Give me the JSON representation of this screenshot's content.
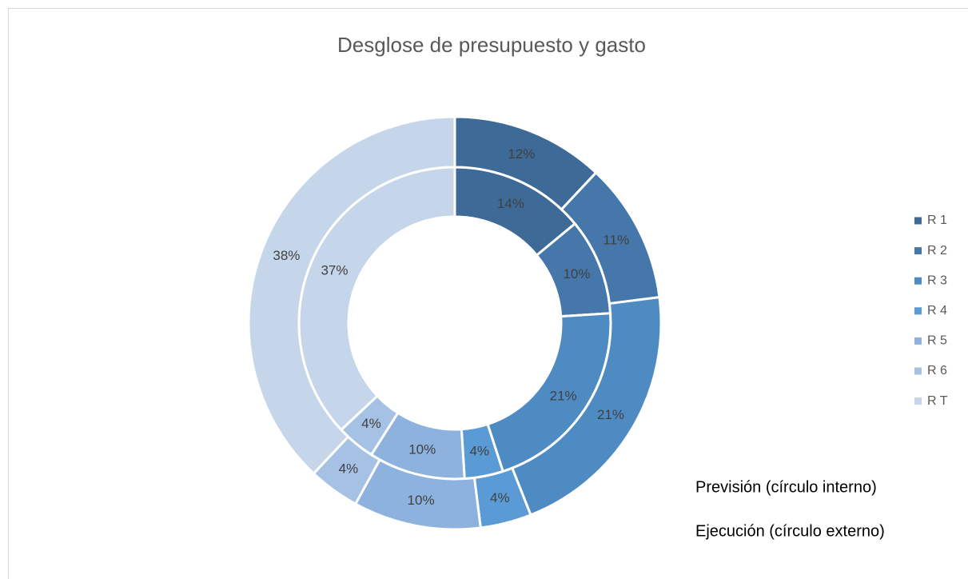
{
  "chart_data": {
    "type": "doughnut",
    "title": "Desglose de presupuesto y gasto",
    "categories": [
      "R 1",
      "R 2",
      "R 3",
      "R 4",
      "R 5",
      "R 6",
      "R T"
    ],
    "colors": [
      "#3d6a97",
      "#4577ab",
      "#4e8bc2",
      "#5b9bd5",
      "#8db2de",
      "#a5c1e4",
      "#c5d6eb"
    ],
    "series": [
      {
        "name": "Previsión (círculo interno)",
        "values": [
          14,
          10,
          21,
          4,
          10,
          4,
          37
        ],
        "value_labels": [
          "14%",
          "10%",
          "21%",
          "4%",
          "10%",
          "4%",
          "37%"
        ]
      },
      {
        "name": "Ejecución (círculo externo)",
        "values": [
          12,
          11,
          21,
          4,
          10,
          4,
          38
        ],
        "value_labels": [
          "12%",
          "11%",
          "21%",
          "4%",
          "10%",
          "4%",
          "38%"
        ]
      }
    ],
    "legend": "right"
  }
}
